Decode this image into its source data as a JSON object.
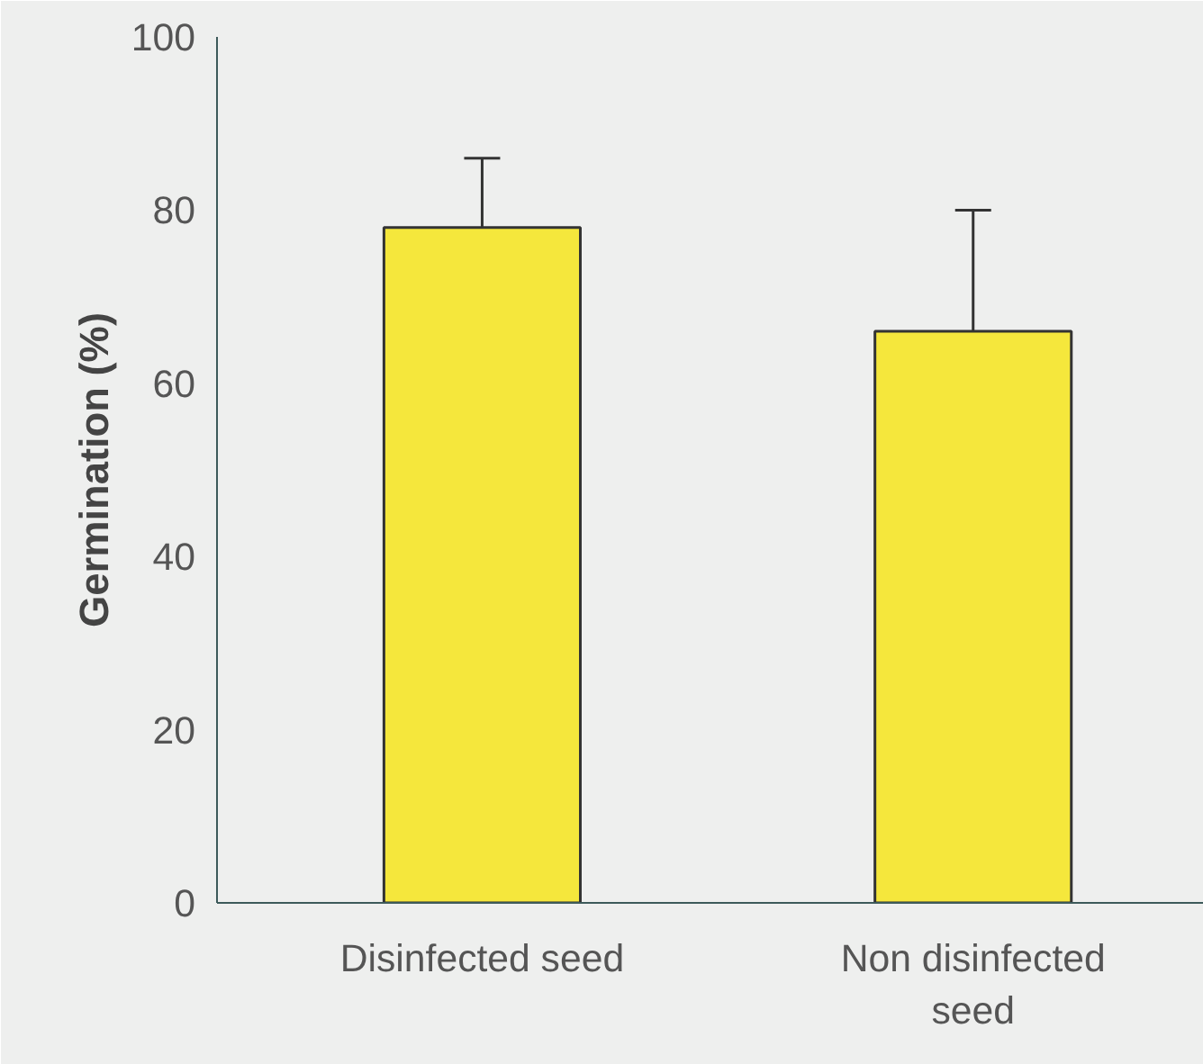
{
  "chart_data": {
    "type": "bar",
    "ylabel": "Germination (%)",
    "categories": [
      "Disinfected seed",
      "Non disinfected seed"
    ],
    "values": [
      78,
      66
    ],
    "errors": [
      [
        78,
        86
      ],
      [
        66,
        80
      ]
    ],
    "color": "#f5e73c",
    "ylim": [
      0,
      100
    ],
    "yticks": [
      0,
      20,
      40,
      60,
      80,
      100
    ],
    "grid": false
  }
}
